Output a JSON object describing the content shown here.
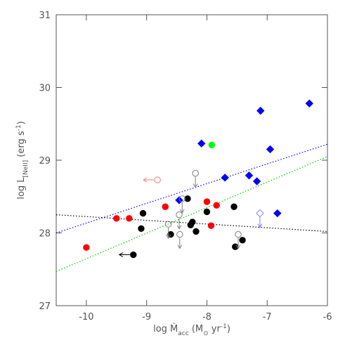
{
  "chart_data": {
    "type": "scatter",
    "xlabel": {
      "main": "log Ṁ",
      "sub": "acc",
      "unit": " (M",
      "unit_sub": "⊙",
      "unit_tail": " yr",
      "sup": "-1",
      "end": ")"
    },
    "ylabel": {
      "main": "log L",
      "sub": "[NeII]",
      "unit": " (erg s",
      "sup": "-1",
      "end": ")"
    },
    "xlim": [
      -10.5,
      -6
    ],
    "ylim": [
      27,
      31
    ],
    "xticks": [
      -10,
      -9,
      -8,
      -7,
      -6
    ],
    "yticks": [
      27,
      28,
      29,
      30,
      31
    ],
    "series": [
      {
        "color": "#0000ff",
        "marker": "diamond",
        "fill": true,
        "arrow": null,
        "x": [
          -7.11,
          -6.3,
          -8.09,
          -6.95,
          -7.7,
          -7.3,
          -7.17,
          -8.46,
          -6.83
        ],
        "values": [
          29.68,
          29.78,
          29.23,
          29.15,
          28.76,
          28.79,
          28.71,
          28.45,
          28.27
        ]
      },
      {
        "color": "#8080ff",
        "marker": "diamond",
        "fill": false,
        "arrow": "down",
        "x": [
          -7.12
        ],
        "values": [
          28.27
        ]
      },
      {
        "color": "#00ff00",
        "marker": "circle",
        "fill": true,
        "arrow": null,
        "x": [
          -7.92
        ],
        "values": [
          29.21
        ]
      },
      {
        "color": "#ff0000",
        "marker": "circle",
        "fill": true,
        "arrow": null,
        "x": [
          -10.0,
          -9.5,
          -9.29,
          -8.69,
          -8.0,
          -7.93,
          -7.84
        ],
        "values": [
          27.8,
          28.2,
          28.2,
          28.36,
          28.43,
          28.1,
          28.38
        ]
      },
      {
        "color": "#f08080",
        "marker": "circle",
        "fill": false,
        "arrow": "left",
        "x": [
          -8.82
        ],
        "values": [
          28.73
        ]
      },
      {
        "color": "#000000",
        "marker": "circle",
        "fill": true,
        "arrow": null,
        "x": [
          -9.06,
          -9.09,
          -8.6,
          -8.32,
          -8.27,
          -8.24,
          -8.18,
          -8.0,
          -7.55,
          -7.53,
          -7.41
        ],
        "values": [
          28.27,
          28.06,
          27.98,
          28.47,
          28.11,
          28.15,
          28.02,
          28.29,
          28.36,
          27.81,
          27.9
        ]
      },
      {
        "color": "#000000",
        "marker": "circle",
        "fill": true,
        "arrow": "left",
        "x": [
          -9.22
        ],
        "values": [
          27.7
        ]
      },
      {
        "color": "#808080",
        "marker": "circle",
        "fill": false,
        "arrow": "down",
        "x": [
          -8.64,
          -8.46,
          -8.45,
          -8.41,
          -8.19,
          -7.48
        ],
        "values": [
          28.12,
          28.25,
          27.98,
          28.47,
          28.82,
          27.98
        ]
      }
    ],
    "lines": [
      {
        "color": "#0000ff",
        "x": [
          -10.5,
          -6
        ],
        "values": [
          28.0,
          29.22
        ]
      },
      {
        "color": "#00cc00",
        "x": [
          -10.5,
          -6
        ],
        "values": [
          27.47,
          29.05
        ]
      },
      {
        "color": "#000000",
        "x": [
          -10.5,
          -6
        ],
        "values": [
          28.25,
          28.02
        ]
      }
    ]
  }
}
